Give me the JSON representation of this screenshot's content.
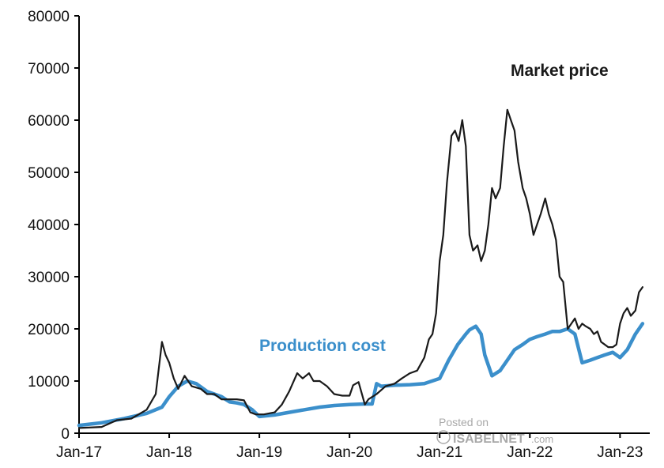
{
  "chart_data": {
    "type": "line",
    "title": "",
    "xlabel": "",
    "ylabel": "",
    "ylim": [
      0,
      80000
    ],
    "yticks": [
      0,
      10000,
      20000,
      30000,
      40000,
      50000,
      60000,
      70000,
      80000
    ],
    "xlim": [
      2017.0,
      2023.33
    ],
    "xticks": [
      {
        "label": "Jan-17",
        "value": 2017.0
      },
      {
        "label": "Jan-18",
        "value": 2018.0
      },
      {
        "label": "Jan-19",
        "value": 2019.0
      },
      {
        "label": "Jan-20",
        "value": 2020.0
      },
      {
        "label": "Jan-21",
        "value": 2021.0
      },
      {
        "label": "Jan-22",
        "value": 2022.0
      },
      {
        "label": "Jan-23",
        "value": 2023.0
      }
    ],
    "series": [
      {
        "name": "Market price",
        "color": "#1a1a1a",
        "x": [
          2017.0,
          2017.25,
          2017.42,
          2017.58,
          2017.75,
          2017.85,
          2017.92,
          2017.96,
          2018.0,
          2018.05,
          2018.1,
          2018.17,
          2018.25,
          2018.35,
          2018.42,
          2018.5,
          2018.58,
          2018.67,
          2018.75,
          2018.83,
          2018.9,
          2018.96,
          2019.05,
          2019.17,
          2019.25,
          2019.33,
          2019.42,
          2019.48,
          2019.55,
          2019.6,
          2019.67,
          2019.75,
          2019.83,
          2019.92,
          2020.0,
          2020.04,
          2020.1,
          2020.17,
          2020.21,
          2020.3,
          2020.4,
          2020.5,
          2020.58,
          2020.67,
          2020.75,
          2020.83,
          2020.88,
          2020.92,
          2020.96,
          2021.0,
          2021.04,
          2021.08,
          2021.13,
          2021.17,
          2021.21,
          2021.25,
          2021.29,
          2021.33,
          2021.37,
          2021.42,
          2021.46,
          2021.5,
          2021.54,
          2021.58,
          2021.62,
          2021.67,
          2021.71,
          2021.75,
          2021.79,
          2021.83,
          2021.87,
          2021.92,
          2021.96,
          2022.0,
          2022.04,
          2022.08,
          2022.12,
          2022.17,
          2022.21,
          2022.25,
          2022.29,
          2022.33,
          2022.37,
          2022.42,
          2022.46,
          2022.5,
          2022.54,
          2022.58,
          2022.62,
          2022.67,
          2022.71,
          2022.75,
          2022.79,
          2022.83,
          2022.87,
          2022.92,
          2022.96,
          2023.0,
          2023.04,
          2023.08,
          2023.12,
          2023.17,
          2023.21,
          2023.25
        ],
        "values": [
          1000,
          1200,
          2500,
          2800,
          4500,
          7500,
          17500,
          15000,
          13500,
          10500,
          8500,
          11000,
          9000,
          8500,
          7500,
          7500,
          6500,
          6500,
          6500,
          6300,
          4000,
          3600,
          3600,
          4000,
          5500,
          8000,
          11500,
          10500,
          11500,
          10000,
          10000,
          9000,
          7500,
          7200,
          7200,
          9200,
          9800,
          5500,
          6500,
          7500,
          9000,
          9500,
          10500,
          11500,
          12000,
          14500,
          18000,
          19000,
          23000,
          33000,
          38000,
          48000,
          57000,
          58000,
          56000,
          60000,
          55000,
          38000,
          35000,
          36000,
          33000,
          35000,
          40000,
          47000,
          45000,
          47000,
          55000,
          62000,
          60000,
          58000,
          52000,
          47000,
          45000,
          42000,
          38000,
          40000,
          42000,
          45000,
          42000,
          40000,
          37000,
          30000,
          29000,
          20000,
          21000,
          22000,
          20000,
          21000,
          20500,
          20000,
          19000,
          19500,
          17500,
          17000,
          16500,
          16500,
          17000,
          21000,
          23000,
          24000,
          22500,
          23500,
          27000,
          28000
        ]
      },
      {
        "name": "Production cost",
        "color": "#3b8fcb",
        "x": [
          2017.0,
          2017.25,
          2017.5,
          2017.75,
          2017.92,
          2018.0,
          2018.1,
          2018.2,
          2018.3,
          2018.42,
          2018.5,
          2018.58,
          2018.67,
          2018.75,
          2018.83,
          2018.92,
          2019.0,
          2019.17,
          2019.33,
          2019.5,
          2019.67,
          2019.83,
          2020.0,
          2020.17,
          2020.25,
          2020.3,
          2020.35,
          2020.5,
          2020.67,
          2020.83,
          2021.0,
          2021.1,
          2021.2,
          2021.29,
          2021.33,
          2021.4,
          2021.46,
          2021.5,
          2021.58,
          2021.67,
          2021.75,
          2021.83,
          2021.92,
          2022.0,
          2022.08,
          2022.17,
          2022.25,
          2022.33,
          2022.42,
          2022.5,
          2022.58,
          2022.67,
          2022.75,
          2022.83,
          2022.92,
          2023.0,
          2023.08,
          2023.17,
          2023.25
        ],
        "values": [
          1500,
          2000,
          2800,
          3800,
          5000,
          7000,
          9000,
          10000,
          9500,
          8000,
          7500,
          7000,
          6000,
          5800,
          5500,
          4500,
          3200,
          3500,
          4000,
          4500,
          5000,
          5300,
          5500,
          5600,
          5600,
          9500,
          9000,
          9200,
          9300,
          9500,
          10500,
          14000,
          17000,
          19000,
          19800,
          20500,
          19000,
          15000,
          11000,
          12000,
          14000,
          16000,
          17000,
          18000,
          18500,
          19000,
          19500,
          19500,
          20000,
          19000,
          13500,
          14000,
          14500,
          15000,
          15500,
          14500,
          16000,
          19000,
          21000
        ]
      }
    ],
    "annotations": [
      {
        "text": "Market price",
        "series": "Market price"
      },
      {
        "text": "Production cost",
        "series": "Production cost"
      }
    ]
  },
  "watermark": {
    "line1": "Posted on",
    "line2": "ISABELNET",
    "suffix": ".com"
  }
}
